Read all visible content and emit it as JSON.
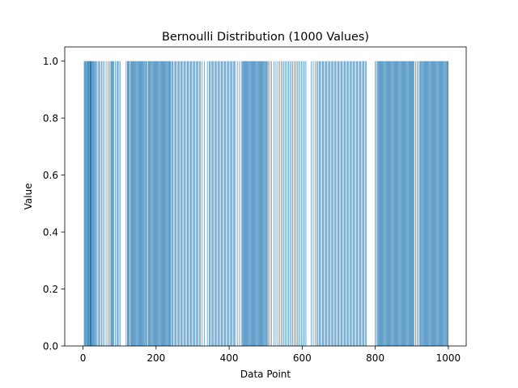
{
  "chart_data": {
    "type": "bar",
    "title": "Bernoulli Distribution (1000 Values)",
    "xlabel": "Data Point",
    "ylabel": "Value",
    "xlim": [
      -49.95,
      1048.95
    ],
    "ylim": [
      0,
      1.05
    ],
    "xticks": [
      0,
      200,
      400,
      600,
      800,
      1000
    ],
    "yticks": [
      0.0,
      0.2,
      0.4,
      0.6,
      0.8,
      1.0
    ],
    "xtick_labels": [
      "0",
      "200",
      "400",
      "600",
      "800",
      "1000"
    ],
    "ytick_labels": [
      "0.0",
      "0.2",
      "0.4",
      "0.6",
      "0.8",
      "1.0"
    ],
    "bar_color": "#1f77b4",
    "bar_width": 0.8,
    "grid": false,
    "legend": "none",
    "n": 1000,
    "ones": [
      3,
      5,
      7,
      9,
      11,
      12,
      13,
      15,
      16,
      18,
      19,
      20,
      21,
      22,
      23,
      25,
      27,
      29,
      31,
      33,
      35,
      38,
      41,
      44,
      47,
      51,
      54,
      58,
      63,
      68,
      72,
      76,
      78,
      80,
      82,
      84,
      88,
      92,
      95,
      98,
      101,
      118,
      121,
      123,
      125,
      127,
      130,
      132,
      134,
      136,
      138,
      140,
      142,
      144,
      146,
      148,
      150,
      152,
      154,
      156,
      158,
      160,
      162,
      164,
      166,
      168,
      170,
      172,
      175,
      178,
      180,
      182,
      184,
      186,
      188,
      190,
      192,
      194,
      196,
      198,
      200,
      202,
      204,
      206,
      208,
      210,
      212,
      214,
      216,
      218,
      220,
      222,
      224,
      226,
      228,
      230,
      232,
      234,
      236,
      238,
      240,
      243,
      246,
      249,
      252,
      255,
      258,
      261,
      264,
      267,
      270,
      273,
      276,
      279,
      282,
      285,
      288,
      291,
      294,
      297,
      300,
      303,
      306,
      309,
      312,
      315,
      318,
      321,
      326,
      332,
      340,
      345,
      348,
      351,
      354,
      357,
      360,
      363,
      366,
      369,
      372,
      375,
      378,
      381,
      384,
      387,
      390,
      393,
      396,
      399,
      402,
      405,
      408,
      411,
      414,
      417,
      422,
      428,
      433,
      436,
      438,
      440,
      442,
      444,
      446,
      448,
      450,
      452,
      454,
      456,
      458,
      460,
      462,
      464,
      466,
      468,
      470,
      472,
      474,
      476,
      478,
      480,
      482,
      484,
      486,
      488,
      490,
      492,
      494,
      496,
      498,
      500,
      502,
      504,
      507,
      512,
      516,
      522,
      528,
      533,
      538,
      542,
      546,
      550,
      554,
      558,
      562,
      566,
      570,
      574,
      578,
      582,
      586,
      590,
      594,
      598,
      602,
      606,
      610,
      625,
      630,
      635,
      640,
      643,
      646,
      649,
      652,
      655,
      658,
      661,
      664,
      667,
      670,
      673,
      676,
      679,
      682,
      685,
      688,
      691,
      694,
      697,
      700,
      703,
      706,
      709,
      712,
      715,
      718,
      721,
      724,
      727,
      730,
      733,
      736,
      739,
      742,
      745,
      748,
      751,
      754,
      757,
      760,
      763,
      766,
      769,
      772,
      775,
      800,
      803,
      806,
      808,
      810,
      812,
      814,
      816,
      818,
      820,
      822,
      824,
      826,
      828,
      830,
      832,
      834,
      836,
      838,
      840,
      842,
      844,
      846,
      848,
      850,
      852,
      854,
      856,
      858,
      860,
      862,
      864,
      866,
      868,
      870,
      872,
      874,
      876,
      878,
      880,
      882,
      884,
      886,
      888,
      890,
      892,
      894,
      896,
      898,
      900,
      902,
      904,
      906,
      910,
      914,
      918,
      922,
      924,
      926,
      928,
      930,
      932,
      934,
      936,
      938,
      940,
      942,
      944,
      946,
      948,
      950,
      952,
      954,
      956,
      958,
      960,
      962,
      964,
      966,
      968,
      970,
      972,
      974,
      976,
      978,
      980,
      982,
      984,
      986,
      988,
      990,
      992,
      994,
      996,
      998,
      999
    ]
  }
}
